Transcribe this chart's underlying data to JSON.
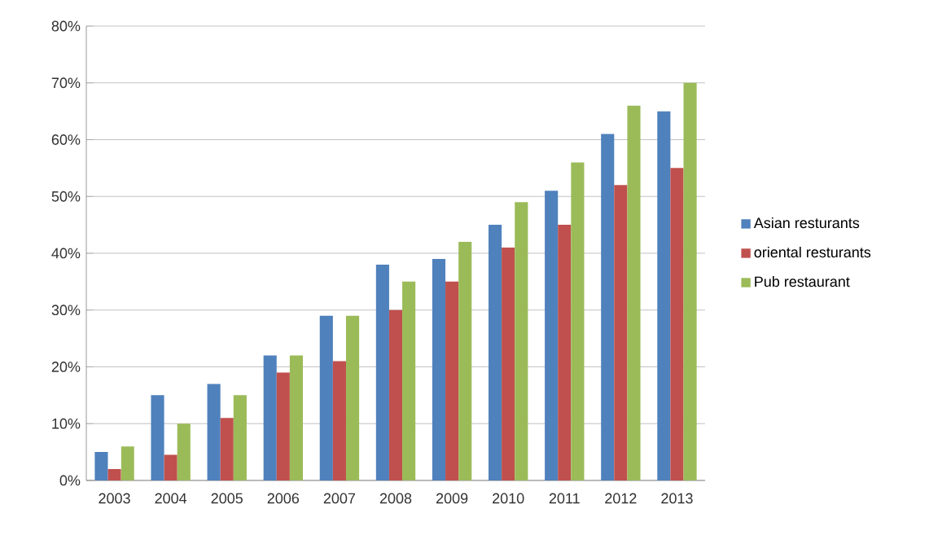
{
  "chart_data": {
    "type": "bar",
    "categories": [
      "2003",
      "2004",
      "2005",
      "2006",
      "2007",
      "2008",
      "2009",
      "2010",
      "2011",
      "2012",
      "2013"
    ],
    "series": [
      {
        "name": "Asian resturants",
        "color": "#4f81bd",
        "values": [
          5,
          15,
          17,
          22,
          29,
          38,
          39,
          45,
          51,
          61,
          65
        ]
      },
      {
        "name": "oriental resturants",
        "color": "#c0504d",
        "values": [
          2,
          4.5,
          11,
          19,
          21,
          30,
          35,
          41,
          45,
          52,
          55
        ]
      },
      {
        "name": "Pub restaurant",
        "color": "#9bbb59",
        "values": [
          6,
          10,
          15,
          22,
          29,
          35,
          42,
          49,
          56,
          66,
          70
        ]
      }
    ],
    "ylim": [
      0,
      80
    ],
    "yticks": [
      {
        "value": 0,
        "label": "0%"
      },
      {
        "value": 10,
        "label": "10%"
      },
      {
        "value": 20,
        "label": "20%"
      },
      {
        "value": 30,
        "label": "30%"
      },
      {
        "value": 40,
        "label": "40%"
      },
      {
        "value": 50,
        "label": "50%"
      },
      {
        "value": 60,
        "label": "60%"
      },
      {
        "value": 70,
        "label": "70%"
      },
      {
        "value": 80,
        "label": "80%"
      }
    ],
    "grid": "y",
    "legend": "right"
  }
}
